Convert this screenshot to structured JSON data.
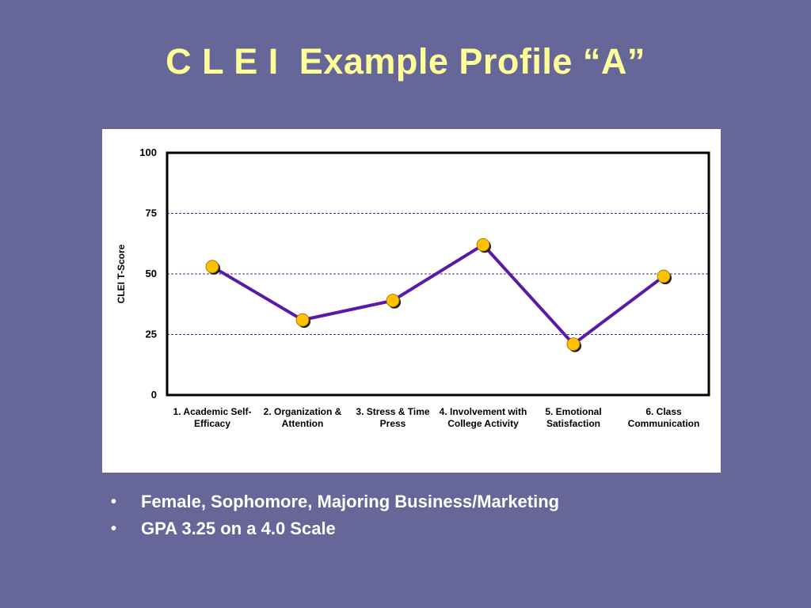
{
  "slide": {
    "title": "C L E I  Example Profile “A”",
    "bullets": [
      "Female, Sophomore, Majoring Business/Marketing",
      "GPA 3.25 on a 4.0 Scale"
    ]
  },
  "chart_data": {
    "type": "line",
    "title": "",
    "xlabel": "",
    "ylabel": "CLEI  T-Score",
    "ylim": [
      0,
      100
    ],
    "yticks": [
      0,
      25,
      50,
      75,
      100
    ],
    "gridlines": [
      25,
      50,
      75
    ],
    "grid": true,
    "legend": "none",
    "categories": [
      [
        "1. Academic Self-",
        "Efficacy"
      ],
      [
        "2. Organization &",
        "Attention"
      ],
      [
        "3. Stress & Time",
        "Press"
      ],
      [
        "4. Involvement with",
        "College Activity"
      ],
      [
        "5. Emotional",
        "Satisfaction"
      ],
      [
        "6. Class",
        "Communication"
      ]
    ],
    "series": [
      {
        "values": [
          53,
          31,
          39,
          62,
          21,
          49
        ]
      }
    ],
    "colors": {
      "line": "#5a1aa8",
      "marker": "#ffc000",
      "grid": "#4b2a8a",
      "title": "#ffff99",
      "background": "#666699"
    }
  }
}
